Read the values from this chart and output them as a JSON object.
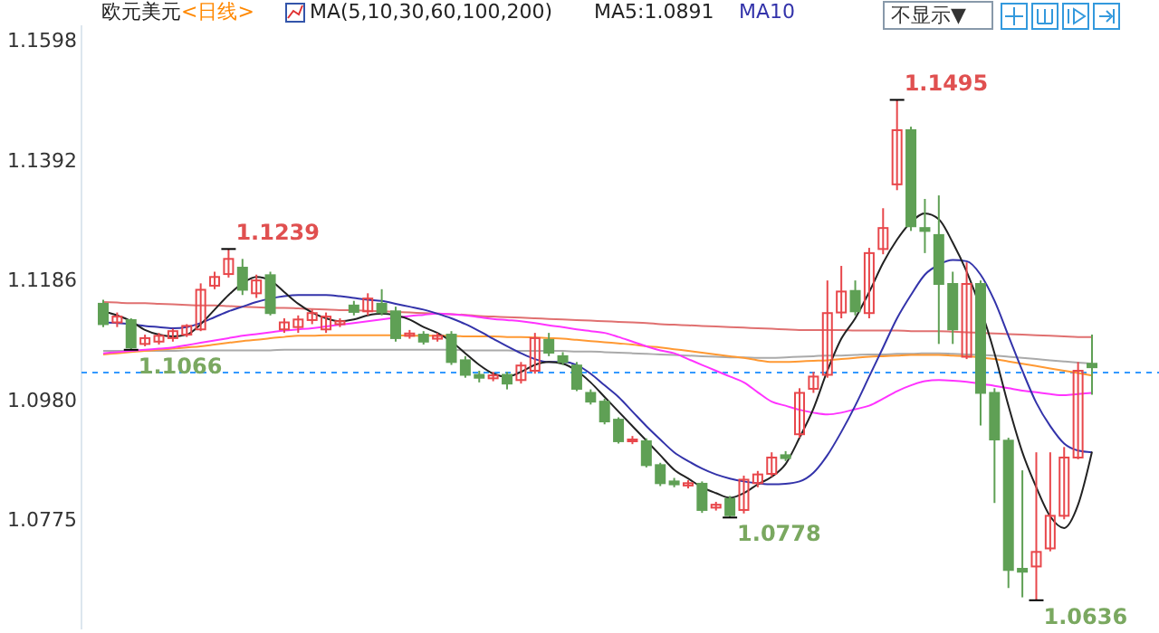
{
  "chart_data": {
    "type": "candlestick",
    "title": "欧元美元",
    "subtitle": "<日线>",
    "categories": [
      null,
      null,
      null,
      null,
      null,
      null,
      null,
      null,
      null,
      null,
      null,
      null,
      null,
      null,
      null,
      null,
      null,
      null,
      null,
      null,
      null,
      null,
      null,
      null,
      null,
      null,
      null,
      null,
      null,
      null,
      null,
      null,
      null,
      null,
      null,
      null,
      null,
      null,
      null,
      null,
      null,
      null,
      null,
      null,
      null,
      null,
      null,
      null,
      null,
      null,
      null,
      null,
      null,
      null,
      null,
      null,
      null,
      null,
      null,
      null,
      null,
      null,
      null,
      null,
      null,
      null,
      null,
      null,
      null,
      null,
      null,
      null
    ],
    "ohlc": [
      [
        1.1145,
        1.1152,
        1.1105,
        1.111
      ],
      [
        1.1113,
        1.113,
        1.1105,
        1.1123
      ],
      [
        1.1117,
        1.112,
        1.1066,
        1.107
      ],
      [
        1.1076,
        1.1092,
        1.1072,
        1.1086
      ],
      [
        1.108,
        1.1095,
        1.1075,
        1.109
      ],
      [
        1.1086,
        1.1102,
        1.108,
        1.1098
      ],
      [
        1.1092,
        1.111,
        1.1088,
        1.1107
      ],
      [
        1.1101,
        1.118,
        1.1098,
        1.1169
      ],
      [
        1.1176,
        1.12,
        1.117,
        1.1191
      ],
      [
        1.1196,
        1.1239,
        1.119,
        1.1222
      ],
      [
        1.1207,
        1.1222,
        1.116,
        1.1169
      ],
      [
        1.1163,
        1.1195,
        1.1155,
        1.1185
      ],
      [
        1.1194,
        1.12,
        1.1125,
        1.1129
      ],
      [
        1.1101,
        1.112,
        1.1095,
        1.1113
      ],
      [
        1.1105,
        1.1125,
        1.1095,
        1.1118
      ],
      [
        1.1117,
        1.1135,
        1.111,
        1.1129
      ],
      [
        1.1101,
        1.113,
        1.1095,
        1.1123
      ],
      [
        1.111,
        1.112,
        1.1105,
        1.1115
      ],
      [
        1.1142,
        1.115,
        1.1125,
        1.1131
      ],
      [
        1.1132,
        1.1163,
        1.1125,
        1.1154
      ],
      [
        1.1145,
        1.117,
        1.1125,
        1.113
      ],
      [
        1.1132,
        1.114,
        1.108,
        1.1086
      ],
      [
        1.109,
        1.11,
        1.1085,
        1.1094
      ],
      [
        1.1092,
        1.1098,
        1.1075,
        1.108
      ],
      [
        1.1085,
        1.1095,
        1.108,
        1.109
      ],
      [
        1.1092,
        1.1098,
        1.104,
        1.1045
      ],
      [
        1.1048,
        1.1055,
        1.1018,
        1.1023
      ],
      [
        1.1023,
        1.103,
        1.101,
        1.1018
      ],
      [
        1.1017,
        1.1028,
        1.1012,
        1.1022
      ],
      [
        1.1023,
        1.1028,
        1.0998,
        1.1008
      ],
      [
        1.1014,
        1.1045,
        1.1008,
        1.1039
      ],
      [
        1.103,
        1.1095,
        1.1025,
        1.1086
      ],
      [
        1.1083,
        1.1095,
        1.1055,
        1.1061
      ],
      [
        1.1055,
        1.1062,
        1.104,
        1.1045
      ],
      [
        1.1039,
        1.1045,
        1.0995,
        1.0999
      ],
      [
        1.0992,
        1.0998,
        1.0972,
        1.0977
      ],
      [
        1.0977,
        1.0982,
        1.0938,
        1.0943
      ],
      [
        1.0946,
        1.095,
        1.0905,
        1.0909
      ],
      [
        1.0909,
        1.0918,
        1.0904,
        1.0912
      ],
      [
        1.0909,
        1.0914,
        1.0864,
        1.0868
      ],
      [
        1.0868,
        1.0872,
        1.0832,
        1.0837
      ],
      [
        1.084,
        1.0846,
        1.083,
        1.0835
      ],
      [
        1.0833,
        1.0842,
        1.0828,
        1.0837
      ],
      [
        1.0836,
        1.084,
        1.0786,
        1.0791
      ],
      [
        1.0795,
        1.0805,
        1.079,
        1.08
      ],
      [
        1.081,
        1.0815,
        1.0778,
        1.0782
      ],
      [
        1.0791,
        1.085,
        1.0785,
        1.0843
      ],
      [
        1.0837,
        1.0858,
        1.083,
        1.0852
      ],
      [
        1.0853,
        1.089,
        1.0848,
        1.0881
      ],
      [
        1.0885,
        1.0892,
        1.0875,
        1.088
      ],
      [
        1.0921,
        1.1,
        1.0915,
        1.0992
      ],
      [
        1.0999,
        1.1028,
        1.0992,
        1.102
      ],
      [
        1.1023,
        1.1185,
        1.1018,
        1.1129
      ],
      [
        1.113,
        1.121,
        1.112,
        1.1166
      ],
      [
        1.1167,
        1.1185,
        1.1125,
        1.1132
      ],
      [
        1.1129,
        1.1241,
        1.112,
        1.1232
      ],
      [
        1.1239,
        1.1309,
        1.123,
        1.1275
      ],
      [
        1.135,
        1.1495,
        1.134,
        1.1443
      ],
      [
        1.1443,
        1.1449,
        1.127,
        1.1278
      ],
      [
        1.1275,
        1.1325,
        1.1232,
        1.127
      ],
      [
        1.1263,
        1.1331,
        1.1076,
        1.1179
      ],
      [
        1.1179,
        1.12,
        1.1076,
        1.1101
      ],
      [
        1.1054,
        1.1216,
        1.105,
        1.1179
      ],
      [
        1.1179,
        1.1185,
        1.0936,
        1.0992
      ],
      [
        1.0992,
        1.1,
        1.0803,
        1.0912
      ],
      [
        1.091,
        1.0915,
        1.0657,
        1.0688
      ],
      [
        1.069,
        1.0859,
        1.0641,
        1.0685
      ],
      [
        1.0694,
        1.089,
        1.0636,
        1.0719
      ],
      [
        1.0725,
        1.089,
        1.072,
        1.0781
      ],
      [
        1.0781,
        1.0899,
        1.0775,
        1.0881
      ],
      [
        1.0881,
        1.1045,
        1.0878,
        1.103
      ],
      [
        1.1042,
        1.1092,
        1.0989,
        1.1036
      ]
    ],
    "series": [
      {
        "type": "line",
        "color": "#e07070",
        "values": [
          1.1148,
          1.1147,
          1.1146,
          1.1146,
          1.1145,
          1.1144,
          1.1143,
          1.1142,
          1.1142,
          1.1141,
          1.114,
          1.1139,
          1.1138,
          1.1138,
          1.1137,
          1.1136,
          1.1135,
          1.1134,
          1.1134,
          1.1133,
          1.1132,
          1.1131,
          1.113,
          1.1129,
          1.1128,
          1.1127,
          1.1126,
          1.1124,
          1.1123,
          1.1122,
          1.1121,
          1.112,
          1.1119,
          1.1118,
          1.1117,
          1.1116,
          1.1115,
          1.1114,
          1.1113,
          1.1112,
          1.111,
          1.1109,
          1.1108,
          1.1107,
          1.1106,
          1.1105,
          1.1104,
          1.1103,
          1.1102,
          1.1101,
          1.11,
          1.11,
          1.11,
          1.11,
          1.1099,
          1.1099,
          1.1099,
          1.1099,
          1.1098,
          1.1098,
          1.1098,
          1.1097,
          1.1096,
          1.1095,
          1.1094,
          1.1093,
          1.1092,
          1.1091,
          1.109,
          1.1089,
          1.1088,
          1.1088
        ]
      },
      {
        "type": "line",
        "color": "#aaaaaa",
        "values": [
          1.1064,
          1.1064,
          1.1064,
          1.1064,
          1.1064,
          1.1064,
          1.1065,
          1.1065,
          1.1065,
          1.1065,
          1.1065,
          1.1065,
          1.1065,
          1.1066,
          1.1066,
          1.1066,
          1.1066,
          1.1066,
          1.1066,
          1.1066,
          1.1066,
          1.1066,
          1.1066,
          1.1066,
          1.1066,
          1.1066,
          1.1065,
          1.1065,
          1.1065,
          1.1065,
          1.1064,
          1.1064,
          1.1064,
          1.1064,
          1.1063,
          1.1063,
          1.1062,
          1.1061,
          1.106,
          1.1059,
          1.1058,
          1.1057,
          1.1056,
          1.1055,
          1.1054,
          1.1053,
          1.1053,
          1.1052,
          1.1052,
          1.1053,
          1.1054,
          1.1055,
          1.1056,
          1.1056,
          1.1057,
          1.1058,
          1.1058,
          1.1059,
          1.1059,
          1.106,
          1.106,
          1.1059,
          1.1058,
          1.1057,
          1.1056,
          1.1054,
          1.1052,
          1.105,
          1.1048,
          1.1046,
          1.1044,
          1.1042
        ]
      },
      {
        "type": "line",
        "color": "#ff9933",
        "values": [
          1.1058,
          1.106,
          1.1062,
          1.1064,
          1.1066,
          1.1068,
          1.107,
          1.1072,
          1.1075,
          1.1078,
          1.1081,
          1.1083,
          1.1086,
          1.1088,
          1.109,
          1.109,
          1.1091,
          1.1091,
          1.1091,
          1.1091,
          1.1091,
          1.1091,
          1.109,
          1.109,
          1.109,
          1.109,
          1.1089,
          1.1089,
          1.1089,
          1.1088,
          1.1088,
          1.1087,
          1.1086,
          1.1085,
          1.1083,
          1.1081,
          1.1079,
          1.1077,
          1.1075,
          1.1072,
          1.107,
          1.1067,
          1.1064,
          1.1061,
          1.1058,
          1.1055,
          1.1052,
          1.1048,
          1.1045,
          1.1045,
          1.1046,
          1.1047,
          1.1048,
          1.105,
          1.1052,
          1.1054,
          1.1055,
          1.1056,
          1.1057,
          1.1057,
          1.1057,
          1.1056,
          1.1055,
          1.1053,
          1.105,
          1.1046,
          1.1042,
          1.1038,
          1.1034,
          1.103,
          1.1026,
          1.1022
        ]
      },
      {
        "type": "line",
        "color": "#ff33ff",
        "values": [
          1.106,
          1.1062,
          1.1064,
          1.1066,
          1.1068,
          1.107,
          1.1074,
          1.1078,
          1.1082,
          1.1086,
          1.109,
          1.1093,
          1.1096,
          1.1099,
          1.1101,
          1.1103,
          1.1106,
          1.1109,
          1.1112,
          1.1115,
          1.1118,
          1.1121,
          1.1124,
          1.1126,
          1.1128,
          1.1127,
          1.1125,
          1.1122,
          1.1119,
          1.1117,
          1.1115,
          1.1112,
          1.1108,
          1.1105,
          1.1101,
          1.1098,
          1.1095,
          1.1088,
          1.108,
          1.1072,
          1.1065,
          1.106,
          1.105,
          1.104,
          1.103,
          1.102,
          1.101,
          1.0993,
          1.0977,
          1.097,
          1.0963,
          1.0958,
          1.0955,
          1.0958,
          1.0964,
          1.097,
          1.0982,
          1.0995,
          1.1005,
          1.1012,
          1.1014,
          1.1013,
          1.1011,
          1.1008,
          1.1004,
          1.1,
          1.0996,
          1.0993,
          1.099,
          1.0988,
          1.099,
          1.0992
        ]
      },
      {
        "type": "line",
        "name": "MA10",
        "color": "#3333aa",
        "values": [
          1.1113,
          1.1112,
          1.111,
          1.1107,
          1.1105,
          1.1103,
          1.1105,
          1.1112,
          1.1122,
          1.1132,
          1.114,
          1.1148,
          1.1154,
          1.1158,
          1.116,
          1.116,
          1.116,
          1.1158,
          1.1155,
          1.1152,
          1.115,
          1.1145,
          1.114,
          1.1135,
          1.1128,
          1.112,
          1.111,
          1.1098,
          1.1085,
          1.1072,
          1.106,
          1.105,
          1.1045,
          1.1045,
          1.104,
          1.1025,
          1.1005,
          1.0985,
          1.096,
          1.0935,
          1.0912,
          1.089,
          1.0875,
          1.0862,
          1.0852,
          1.0845,
          1.084,
          1.0837,
          1.0835,
          1.0836,
          1.084,
          1.0855,
          1.0885,
          1.0925,
          1.097,
          1.102,
          1.107,
          1.112,
          1.116,
          1.1195,
          1.1212,
          1.122,
          1.1218,
          1.1195,
          1.115,
          1.109,
          1.103,
          1.0975,
          1.0935,
          1.0905,
          1.0893,
          1.089
        ]
      },
      {
        "type": "line",
        "name": "MA5:1.0891",
        "color": "#222222",
        "values": [
          1.1132,
          1.1125,
          1.1115,
          1.11,
          1.1092,
          1.1089,
          1.1092,
          1.111,
          1.1135,
          1.116,
          1.118,
          1.1191,
          1.1185,
          1.1165,
          1.1145,
          1.113,
          1.112,
          1.1115,
          1.1118,
          1.1125,
          1.1128,
          1.1125,
          1.1118,
          1.1105,
          1.1095,
          1.108,
          1.106,
          1.104,
          1.1025,
          1.102,
          1.1028,
          1.104,
          1.1045,
          1.1042,
          1.103,
          1.101,
          1.0985,
          1.096,
          1.0935,
          1.091,
          1.0885,
          1.086,
          1.0845,
          1.083,
          1.082,
          1.0812,
          1.082,
          1.0835,
          1.0848,
          1.087,
          1.0915,
          1.0965,
          1.103,
          1.1085,
          1.112,
          1.1165,
          1.1215,
          1.1255,
          1.1285,
          1.13,
          1.129,
          1.125,
          1.12,
          null,
          1.106,
          1.097,
          1.089,
          1.083,
          1.078,
          1.076,
          1.08,
          1.0891
        ]
      }
    ],
    "ylim": [
      1.0586,
      1.1623
    ],
    "yticks": [
      1.0775,
      {
        "value": 1.098,
        "label": "1.0980"
      },
      1.1186,
      1.1392,
      1.1598
    ],
    "ref_lines": [
      {
        "axis": "y",
        "value": 1.1027,
        "color": "#3399ff",
        "line_style": "dashed"
      }
    ],
    "legend": "top",
    "annotations": [
      "MA(5,10,30,60,100,200)",
      "不显示▼",
      "1.1239",
      "1.1495",
      "1.1066",
      "1.0778",
      "1.0636"
    ]
  }
}
